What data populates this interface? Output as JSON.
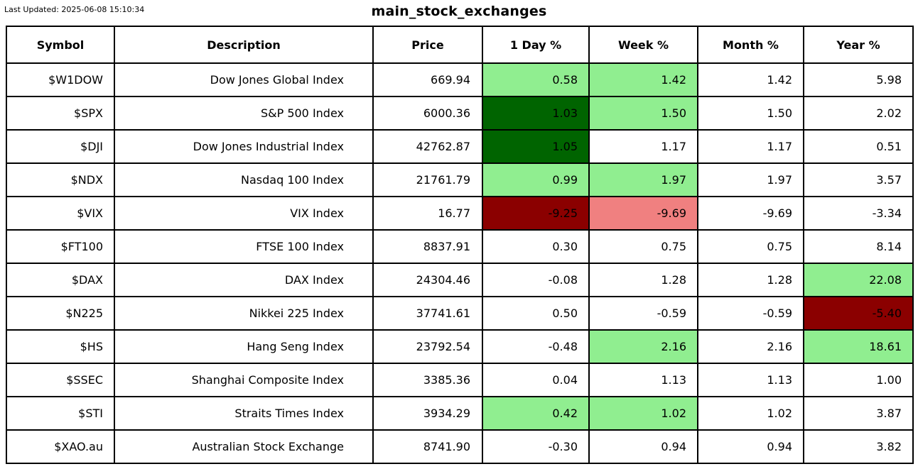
{
  "chart_data": {
    "type": "table",
    "title": "main_stock_exchanges",
    "last_updated_label": "Last Updated: 2025-06-08 15:10:34",
    "columns": [
      "Symbol",
      "Description",
      "Price",
      "1 Day %",
      "Week %",
      "Month %",
      "Year %"
    ],
    "column_keys": [
      "symbol",
      "description",
      "price",
      "1day-pct",
      "week-pct",
      "month-pct",
      "year-pct"
    ],
    "highlight_colors": {
      "strong_gain": "#006400",
      "mild_gain": "#90EE90",
      "strong_loss": "#8B0000",
      "mild_loss": "#F08080",
      "neutral": "#FFFFFF"
    },
    "border_color": "#000000",
    "text_color": "#000000",
    "rows": [
      {
        "cells": [
          "$W1DOW",
          "Dow Jones Global Index",
          "669.94",
          "0.58",
          "1.42",
          "1.42",
          "5.98"
        ],
        "cell_bg": [
          null,
          null,
          null,
          "mild_gain",
          "mild_gain",
          null,
          null
        ]
      },
      {
        "cells": [
          "$SPX",
          "S&P 500 Index",
          "6000.36",
          "1.03",
          "1.50",
          "1.50",
          "2.02"
        ],
        "cell_bg": [
          null,
          null,
          null,
          "strong_gain",
          "mild_gain",
          null,
          null
        ]
      },
      {
        "cells": [
          "$DJI",
          "Dow Jones Industrial Index",
          "42762.87",
          "1.05",
          "1.17",
          "1.17",
          "0.51"
        ],
        "cell_bg": [
          null,
          null,
          null,
          "strong_gain",
          null,
          null,
          null
        ]
      },
      {
        "cells": [
          "$NDX",
          "Nasdaq 100 Index",
          "21761.79",
          "0.99",
          "1.97",
          "1.97",
          "3.57"
        ],
        "cell_bg": [
          null,
          null,
          null,
          "mild_gain",
          "mild_gain",
          null,
          null
        ]
      },
      {
        "cells": [
          "$VIX",
          "VIX Index",
          "16.77",
          "-9.25",
          "-9.69",
          "-9.69",
          "-3.34"
        ],
        "cell_bg": [
          null,
          null,
          null,
          "strong_loss",
          "mild_loss",
          null,
          null
        ]
      },
      {
        "cells": [
          "$FT100",
          "FTSE 100 Index",
          "8837.91",
          "0.30",
          "0.75",
          "0.75",
          "8.14"
        ],
        "cell_bg": [
          null,
          null,
          null,
          null,
          null,
          null,
          null
        ]
      },
      {
        "cells": [
          "$DAX",
          "DAX Index",
          "24304.46",
          "-0.08",
          "1.28",
          "1.28",
          "22.08"
        ],
        "cell_bg": [
          null,
          null,
          null,
          null,
          null,
          null,
          "mild_gain"
        ]
      },
      {
        "cells": [
          "$N225",
          "Nikkei 225 Index",
          "37741.61",
          "0.50",
          "-0.59",
          "-0.59",
          "-5.40"
        ],
        "cell_bg": [
          null,
          null,
          null,
          null,
          null,
          null,
          "strong_loss"
        ]
      },
      {
        "cells": [
          "$HS",
          "Hang Seng Index",
          "23792.54",
          "-0.48",
          "2.16",
          "2.16",
          "18.61"
        ],
        "cell_bg": [
          null,
          null,
          null,
          null,
          "mild_gain",
          null,
          "mild_gain"
        ]
      },
      {
        "cells": [
          "$SSEC",
          "Shanghai Composite Index",
          "3385.36",
          "0.04",
          "1.13",
          "1.13",
          "1.00"
        ],
        "cell_bg": [
          null,
          null,
          null,
          null,
          null,
          null,
          null
        ]
      },
      {
        "cells": [
          "$STI",
          "Straits Times Index",
          "3934.29",
          "0.42",
          "1.02",
          "1.02",
          "3.87"
        ],
        "cell_bg": [
          null,
          null,
          null,
          "mild_gain",
          "mild_gain",
          null,
          null
        ]
      },
      {
        "cells": [
          "$XAO.au",
          "Australian Stock Exchange",
          "8741.90",
          "-0.30",
          "0.94",
          "0.94",
          "3.82"
        ],
        "cell_bg": [
          null,
          null,
          null,
          null,
          null,
          null,
          null
        ]
      }
    ]
  }
}
